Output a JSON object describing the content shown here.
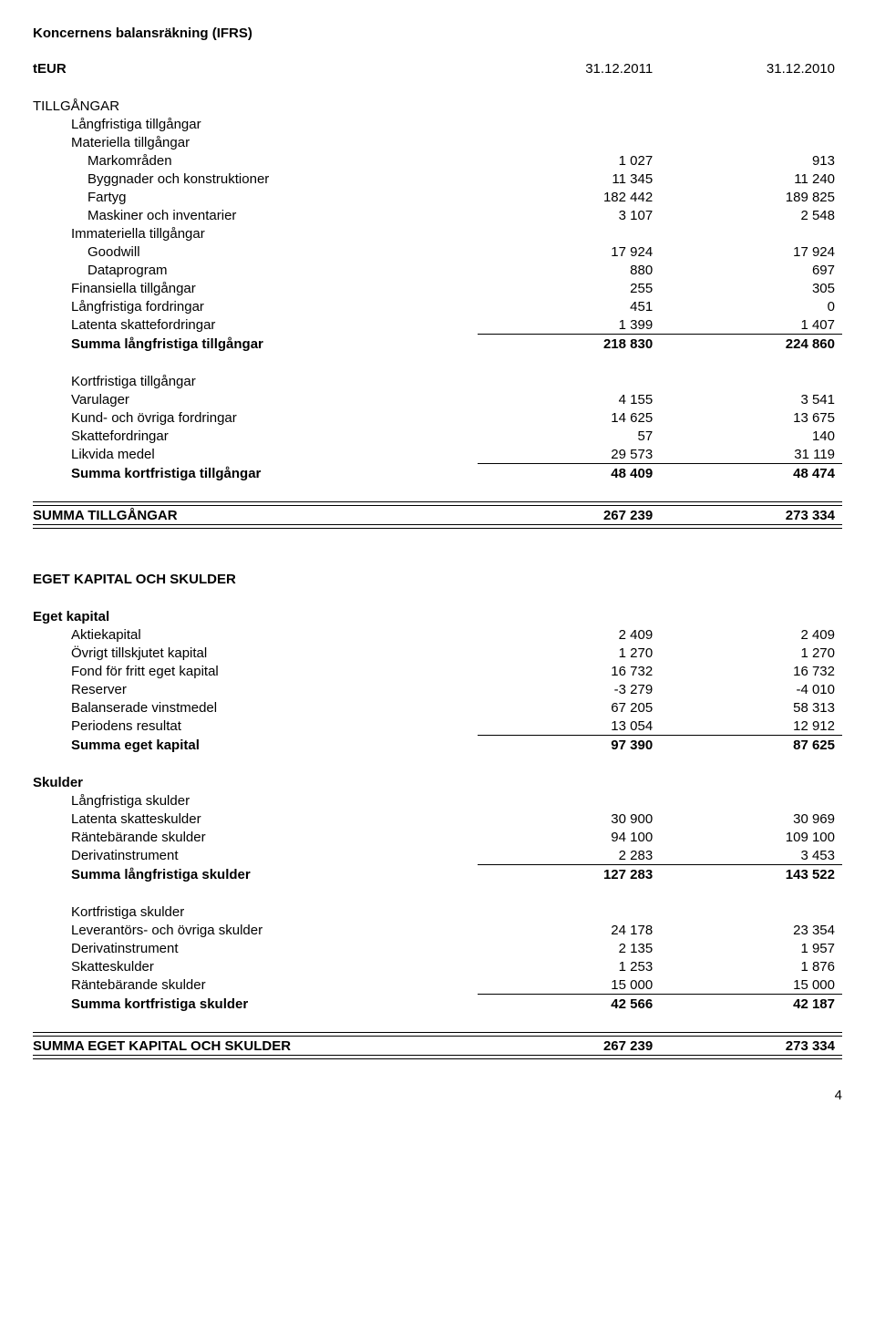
{
  "title": "Koncernens balansräkning (IFRS)",
  "header": {
    "col0": "tEUR",
    "col1": "31.12.2011",
    "col2": "31.12.2010"
  },
  "pageNumber": "4",
  "sections": {
    "tillgangar": {
      "heading": "TILLGÅNGAR"
    },
    "langaTill": {
      "heading": "Långfristiga tillgångar",
      "rows": [
        {
          "label": "Materiella tillgångar"
        },
        {
          "label": "Markområden",
          "c1": "1 027",
          "c2": "913",
          "indent": true
        },
        {
          "label": "Byggnader och konstruktioner",
          "c1": "11 345",
          "c2": "11 240",
          "indent": true
        },
        {
          "label": "Fartyg",
          "c1": "182 442",
          "c2": "189 825",
          "indent": true
        },
        {
          "label": "Maskiner och inventarier",
          "c1": "3 107",
          "c2": "2 548",
          "indent": true
        },
        {
          "label": "Immateriella tillgångar"
        },
        {
          "label": "Goodwill",
          "c1": "17 924",
          "c2": "17 924",
          "indent": true
        },
        {
          "label": "Dataprogram",
          "c1": "880",
          "c2": "697",
          "indent": true
        },
        {
          "label": "Finansiella tillgångar",
          "c1": "255",
          "c2": "305"
        },
        {
          "label": "Långfristiga fordringar",
          "c1": "451",
          "c2": "0"
        },
        {
          "label": "Latenta skattefordringar",
          "c1": "1 399",
          "c2": "1 407"
        }
      ],
      "sum": {
        "label": "Summa långfristiga tillgångar",
        "c1": "218 830",
        "c2": "224 860"
      }
    },
    "kortTill": {
      "heading": "Kortfristiga tillgångar",
      "rows": [
        {
          "label": "Varulager",
          "c1": "4 155",
          "c2": "3 541"
        },
        {
          "label": "Kund- och övriga fordringar",
          "c1": "14 625",
          "c2": "13 675"
        },
        {
          "label": "Skattefordringar",
          "c1": "57",
          "c2": "140"
        },
        {
          "label": "Likvida medel",
          "c1": "29 573",
          "c2": "31 119"
        }
      ],
      "sum": {
        "label": "Summa kortfristiga tillgångar",
        "c1": "48 409",
        "c2": "48 474"
      }
    },
    "sumTill": {
      "label": "SUMMA TILLGÅNGAR",
      "c1": "267 239",
      "c2": "273 334"
    },
    "ekSkulder": {
      "heading": "EGET KAPITAL OCH SKULDER"
    },
    "egetKap": {
      "heading": "Eget kapital",
      "rows": [
        {
          "label": "Aktiekapital",
          "c1": "2 409",
          "c2": "2 409"
        },
        {
          "label": "Övrigt tillskjutet kapital",
          "c1": "1 270",
          "c2": "1 270"
        },
        {
          "label": "Fond för fritt eget kapital",
          "c1": "16 732",
          "c2": "16 732"
        },
        {
          "label": "Reserver",
          "c1": "-3 279",
          "c2": "-4 010"
        },
        {
          "label": "Balanserade vinstmedel",
          "c1": "67 205",
          "c2": "58 313"
        },
        {
          "label": "Periodens resultat",
          "c1": "13 054",
          "c2": "12 912"
        }
      ],
      "sum": {
        "label": "Summa eget kapital",
        "c1": "97 390",
        "c2": "87 625"
      }
    },
    "skulder": {
      "heading": "Skulder"
    },
    "langSkuld": {
      "heading": "Långfristiga skulder",
      "rows": [
        {
          "label": "Latenta skatteskulder",
          "c1": "30 900",
          "c2": "30 969"
        },
        {
          "label": "Räntebärande skulder",
          "c1": "94 100",
          "c2": "109 100"
        },
        {
          "label": "Derivatinstrument",
          "c1": "2 283",
          "c2": "3 453"
        }
      ],
      "sum": {
        "label": "Summa långfristiga skulder",
        "c1": "127 283",
        "c2": "143 522"
      }
    },
    "kortSkuld": {
      "heading": "Kortfristiga skulder",
      "rows": [
        {
          "label": "Leverantörs- och övriga skulder",
          "c1": "24 178",
          "c2": "23 354"
        },
        {
          "label": "Derivatinstrument",
          "c1": "2 135",
          "c2": "1 957"
        },
        {
          "label": "Skatteskulder",
          "c1": "1 253",
          "c2": "1 876"
        },
        {
          "label": "Räntebärande skulder",
          "c1": "15 000",
          "c2": "15 000"
        }
      ],
      "sum": {
        "label": "Summa kortfristiga skulder",
        "c1": "42 566",
        "c2": "42 187"
      }
    },
    "sumEkSk": {
      "label": "SUMMA EGET KAPITAL OCH SKULDER",
      "c1": "267 239",
      "c2": "273 334"
    }
  }
}
